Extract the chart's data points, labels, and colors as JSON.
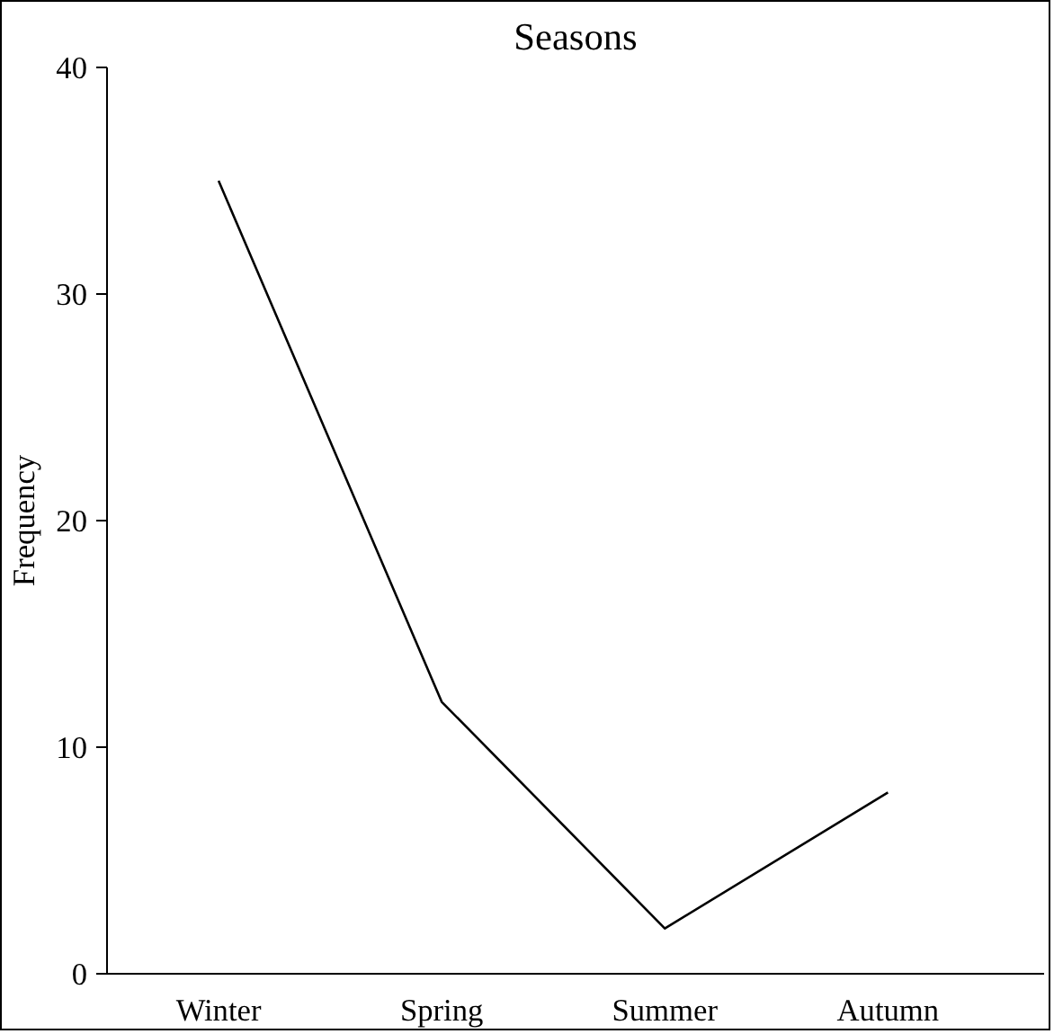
{
  "chart_data": {
    "type": "line",
    "title": "Seasons",
    "ylabel": "Frequency",
    "categories": [
      "Winter",
      "Spring",
      "Summer",
      "Autumn"
    ],
    "values": [
      35,
      12,
      2,
      8
    ],
    "color": "#000000",
    "ylim": [
      0,
      40
    ],
    "yticks": [
      0,
      10,
      20,
      30,
      40
    ],
    "grid": false,
    "marker": "none",
    "line_style": "solid"
  }
}
